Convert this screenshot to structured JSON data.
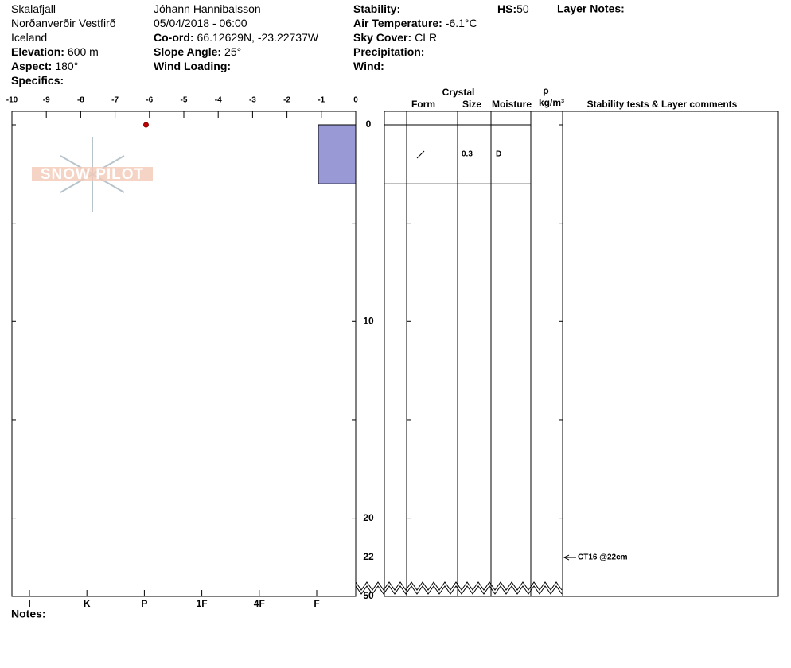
{
  "header": {
    "col1": [
      {
        "value": "Skalafjall"
      },
      {
        "value": "Norðanverðir Vestfirð"
      },
      {
        "value": "Iceland"
      },
      {
        "label": "Elevation:",
        "value": "600 m"
      },
      {
        "label": "Aspect:",
        "value": "180°"
      },
      {
        "label": "Specifics:"
      }
    ],
    "col2": [
      {
        "value": "Jóhann Hannibalsson"
      },
      {
        "value": "05/04/2018 - 06:00"
      },
      {
        "label": "Co-ord:",
        "value": "66.12629N, -23.22737W"
      },
      {
        "label": "Slope Angle:",
        "value": "25°"
      },
      {
        "label": "Wind Loading:"
      }
    ],
    "col3": [
      {
        "label": "Stability:"
      },
      {
        "label": "Air Temperature:",
        "value": "-6.1°C"
      },
      {
        "label": "Sky Cover:",
        "value": "CLR"
      },
      {
        "label": "Precipitation:"
      },
      {
        "label": "Wind:"
      }
    ],
    "hs": {
      "label": "HS:",
      "value": "50"
    },
    "layer_notes": "Layer Notes:"
  },
  "logo": "SNOW PILOT",
  "profile": {
    "temp_lim": [
      -10,
      0
    ],
    "temp_ticks": [
      -10,
      -9,
      -8,
      -7,
      -6,
      -5,
      -4,
      -3,
      -2,
      -1,
      0
    ],
    "air_temp": -6.1,
    "depth_ticks": [
      0,
      5,
      10,
      15,
      20
    ],
    "depth_labels": [
      0,
      10,
      20,
      22,
      50
    ],
    "hardness": [
      "I",
      "K",
      "P",
      "1F",
      "4F",
      "F"
    ],
    "layers": [
      {
        "top": 0,
        "bottom": 3,
        "hardness": "F",
        "size": "0.3",
        "moisture": "D"
      }
    ],
    "tests": [
      {
        "depth": 22,
        "label": "CT16 @22cm"
      }
    ]
  },
  "table": {
    "crystal": "Crystal",
    "form": "Form",
    "size": "Size",
    "moisture": "Moisture",
    "rho": "ρ",
    "unit": "kg/m³",
    "comments": "Stability tests & Layer comments"
  },
  "notes": "Notes:"
}
